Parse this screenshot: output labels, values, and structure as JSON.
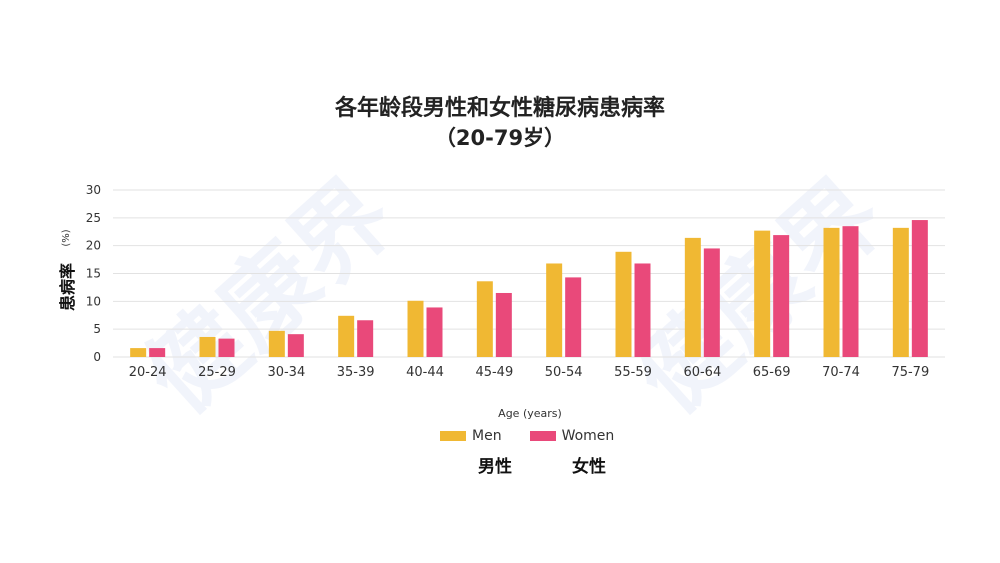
{
  "chart_data": {
    "type": "bar",
    "title": "各年龄段男性和女性糖尿病患病率",
    "subtitle": "（20-79岁）",
    "xlabel": "Age (years)",
    "ylabel": "患病率",
    "ylabel_unit": "(%)",
    "ylim": [
      0,
      30
    ],
    "yticks": [
      0,
      5,
      10,
      15,
      20,
      25,
      30
    ],
    "grid": true,
    "legend_position": "bottom-center",
    "categories": [
      "20-24",
      "25-29",
      "30-34",
      "35-39",
      "40-44",
      "45-49",
      "50-54",
      "55-59",
      "60-64",
      "65-69",
      "70-74",
      "75-79"
    ],
    "series": [
      {
        "name": "Men",
        "name_cn": "男性",
        "color": "#F0B833",
        "values": [
          1.6,
          3.6,
          4.7,
          7.4,
          10.1,
          13.6,
          16.8,
          18.9,
          21.4,
          22.7,
          23.2,
          23.2
        ]
      },
      {
        "name": "Women",
        "name_cn": "女性",
        "color": "#E9497A",
        "values": [
          1.6,
          3.3,
          4.1,
          6.6,
          8.9,
          11.5,
          14.3,
          16.8,
          19.5,
          21.9,
          23.5,
          24.6
        ]
      }
    ]
  },
  "watermark_text": "健康界"
}
